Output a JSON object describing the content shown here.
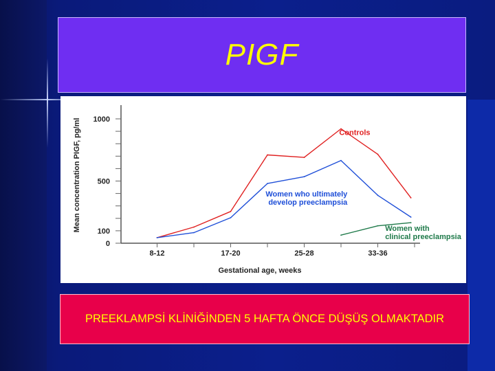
{
  "slide": {
    "title": "PIGF",
    "caption": "PREEKLAMPSİ KLİNİĞİNDEN 5 HAFTA ÖNCE DÜŞÜŞ OLMAKTADIR"
  },
  "colors": {
    "title_bg": "#6f2ef2",
    "title_text": "#ffff00",
    "caption_bg": "#e8004a",
    "controls": "#e02020",
    "develop": "#1f4fd8",
    "clinical": "#1f7a4a"
  },
  "chart_data": {
    "type": "line",
    "xlabel": "Gestational age, weeks",
    "ylabel": "Mean concentration PIGF, pg/ml",
    "ylim": [
      0,
      1000
    ],
    "y_ticks": [
      0,
      100,
      500,
      1000
    ],
    "x_range": [
      0,
      8
    ],
    "categories": [
      "8-12",
      "17-20",
      "25-28",
      "33-36"
    ],
    "category_positions": [
      1,
      3,
      5,
      7
    ],
    "grid": false,
    "series": [
      {
        "name": "Controls",
        "color": "#e02020",
        "x": [
          1,
          2,
          3,
          4,
          5,
          6,
          7,
          7.9
        ],
        "y": [
          45,
          130,
          255,
          710,
          690,
          920,
          715,
          365
        ]
      },
      {
        "name": "Women who ultimately develop preeclampsia",
        "color": "#1f4fd8",
        "x": [
          1,
          2,
          3,
          4,
          5,
          6,
          7,
          7.9
        ],
        "y": [
          45,
          85,
          205,
          480,
          535,
          665,
          385,
          210
        ]
      },
      {
        "name": "Women with clinical preeclampsia",
        "color": "#1f7a4a",
        "x": [
          6,
          7,
          7.9
        ],
        "y": [
          65,
          140,
          165
        ]
      }
    ],
    "annotations": [
      {
        "text": "Controls",
        "series": 0
      },
      {
        "text_lines": [
          "Women who ultimately",
          "develop preeclampsia"
        ],
        "series": 1
      },
      {
        "text_lines": [
          "Women with",
          "clinical preeclampsia"
        ],
        "series": 2
      }
    ]
  }
}
